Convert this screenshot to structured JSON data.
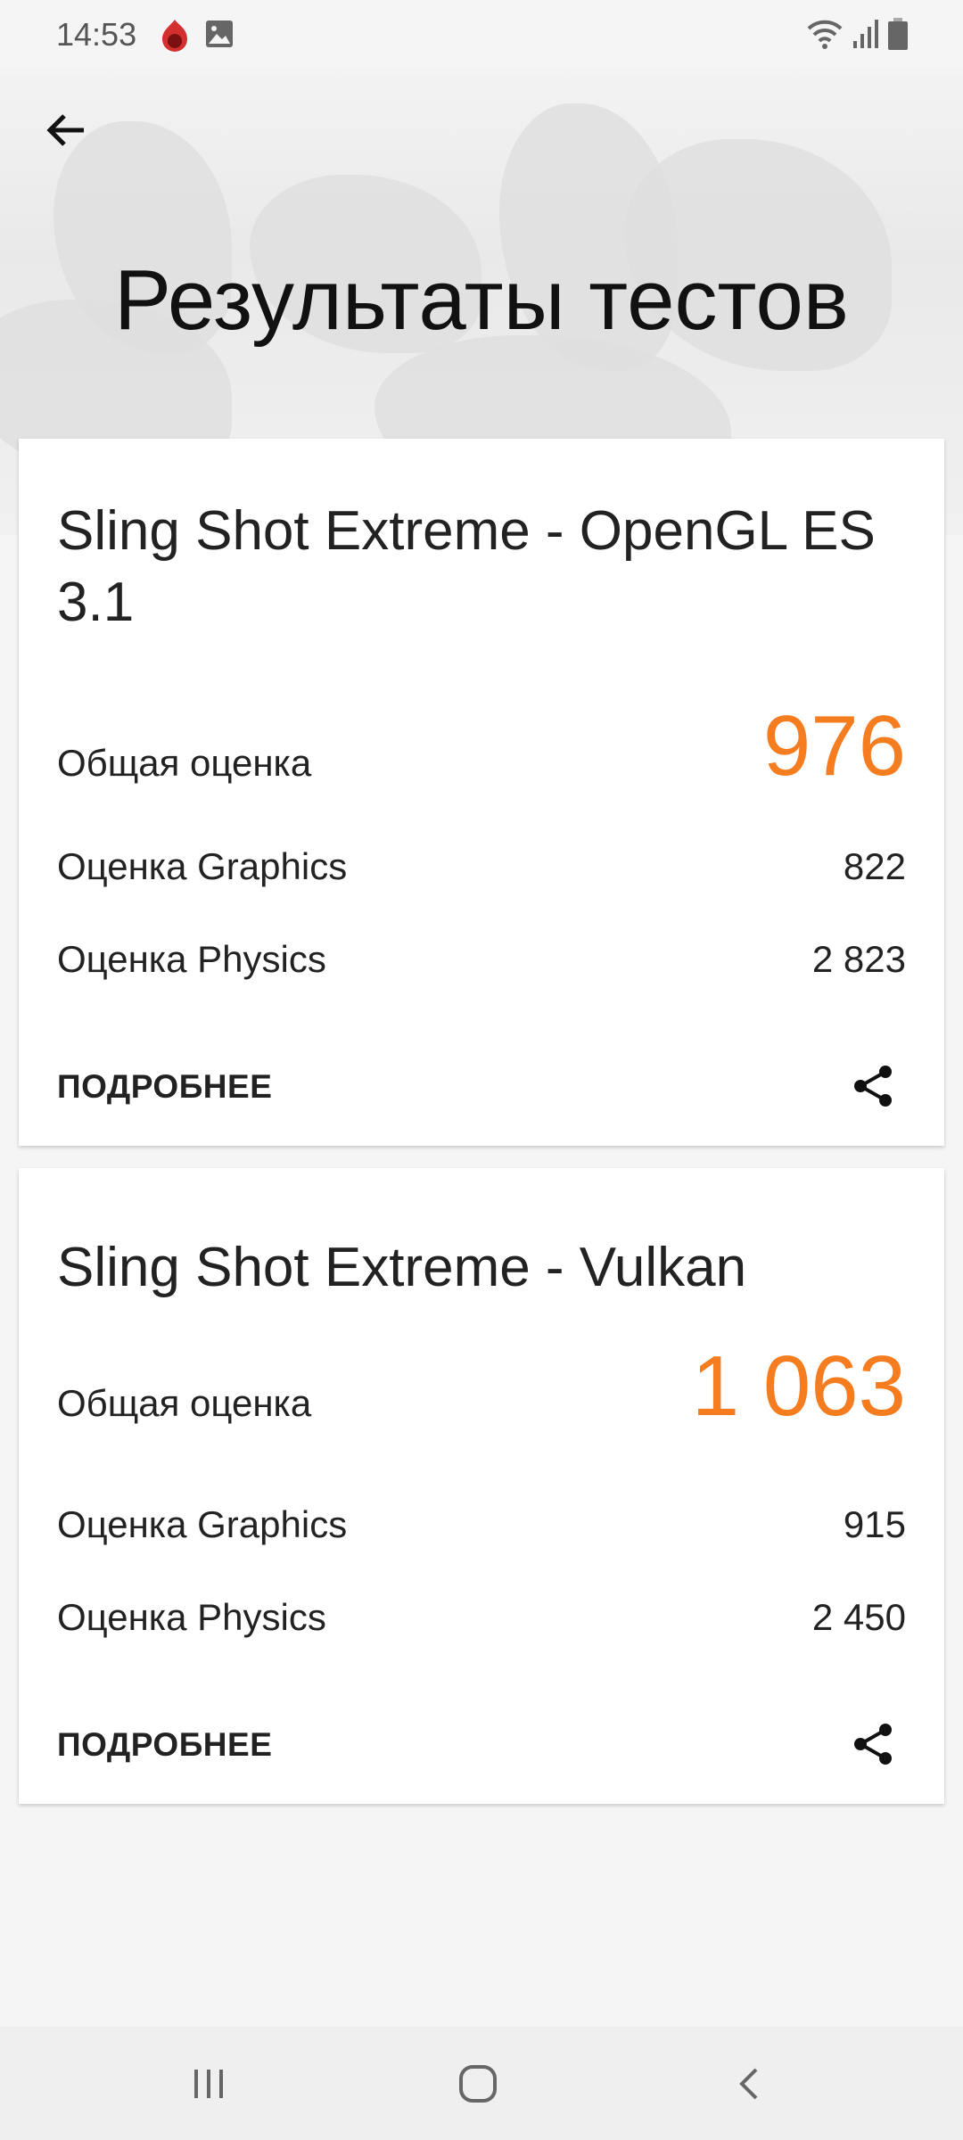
{
  "status_bar": {
    "time": "14:53",
    "icons": [
      "antutu-icon",
      "gallery-icon",
      "wifi-icon",
      "signal-icon",
      "battery-icon"
    ]
  },
  "header": {
    "title": "Результаты тестов",
    "back_icon": "arrow-left-icon"
  },
  "accent_color": "#f57c1f",
  "results": [
    {
      "title": "Sling Shot Extreme - OpenGL ES 3.1",
      "total_label": "Общая оценка",
      "total": "976",
      "graphics_label": "Оценка Graphics",
      "graphics": "822",
      "physics_label": "Оценка Physics",
      "physics": "2 823",
      "more": "ПОДРОБНЕЕ"
    },
    {
      "title": "Sling Shot Extreme - Vulkan",
      "total_label": "Общая оценка",
      "total": "1 063",
      "graphics_label": "Оценка Graphics",
      "graphics": "915",
      "physics_label": "Оценка Physics",
      "physics": "2 450",
      "more": "ПОДРОБНЕЕ"
    }
  ],
  "nav_bar": {
    "buttons": [
      "recents-icon",
      "home-icon",
      "back-icon"
    ]
  }
}
